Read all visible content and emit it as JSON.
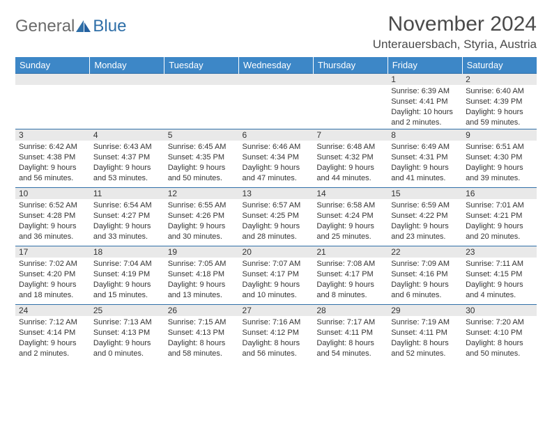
{
  "logo": {
    "part1": "General",
    "part2": "Blue"
  },
  "title": "November 2024",
  "location": "Unterauersbach, Styria, Austria",
  "colors": {
    "header_bg": "#3d87c7",
    "header_text": "#ffffff",
    "rule": "#2f6fa8",
    "daynum_bg": "#e9e9e9",
    "body_text": "#333333",
    "logo_gray": "#6b6b6b",
    "logo_blue": "#2f6fa8"
  },
  "day_headers": [
    "Sunday",
    "Monday",
    "Tuesday",
    "Wednesday",
    "Thursday",
    "Friday",
    "Saturday"
  ],
  "weeks": [
    [
      null,
      null,
      null,
      null,
      null,
      {
        "n": "1",
        "sr": "Sunrise: 6:39 AM",
        "ss": "Sunset: 4:41 PM",
        "dl": "Daylight: 10 hours and 2 minutes."
      },
      {
        "n": "2",
        "sr": "Sunrise: 6:40 AM",
        "ss": "Sunset: 4:39 PM",
        "dl": "Daylight: 9 hours and 59 minutes."
      }
    ],
    [
      {
        "n": "3",
        "sr": "Sunrise: 6:42 AM",
        "ss": "Sunset: 4:38 PM",
        "dl": "Daylight: 9 hours and 56 minutes."
      },
      {
        "n": "4",
        "sr": "Sunrise: 6:43 AM",
        "ss": "Sunset: 4:37 PM",
        "dl": "Daylight: 9 hours and 53 minutes."
      },
      {
        "n": "5",
        "sr": "Sunrise: 6:45 AM",
        "ss": "Sunset: 4:35 PM",
        "dl": "Daylight: 9 hours and 50 minutes."
      },
      {
        "n": "6",
        "sr": "Sunrise: 6:46 AM",
        "ss": "Sunset: 4:34 PM",
        "dl": "Daylight: 9 hours and 47 minutes."
      },
      {
        "n": "7",
        "sr": "Sunrise: 6:48 AM",
        "ss": "Sunset: 4:32 PM",
        "dl": "Daylight: 9 hours and 44 minutes."
      },
      {
        "n": "8",
        "sr": "Sunrise: 6:49 AM",
        "ss": "Sunset: 4:31 PM",
        "dl": "Daylight: 9 hours and 41 minutes."
      },
      {
        "n": "9",
        "sr": "Sunrise: 6:51 AM",
        "ss": "Sunset: 4:30 PM",
        "dl": "Daylight: 9 hours and 39 minutes."
      }
    ],
    [
      {
        "n": "10",
        "sr": "Sunrise: 6:52 AM",
        "ss": "Sunset: 4:28 PM",
        "dl": "Daylight: 9 hours and 36 minutes."
      },
      {
        "n": "11",
        "sr": "Sunrise: 6:54 AM",
        "ss": "Sunset: 4:27 PM",
        "dl": "Daylight: 9 hours and 33 minutes."
      },
      {
        "n": "12",
        "sr": "Sunrise: 6:55 AM",
        "ss": "Sunset: 4:26 PM",
        "dl": "Daylight: 9 hours and 30 minutes."
      },
      {
        "n": "13",
        "sr": "Sunrise: 6:57 AM",
        "ss": "Sunset: 4:25 PM",
        "dl": "Daylight: 9 hours and 28 minutes."
      },
      {
        "n": "14",
        "sr": "Sunrise: 6:58 AM",
        "ss": "Sunset: 4:24 PM",
        "dl": "Daylight: 9 hours and 25 minutes."
      },
      {
        "n": "15",
        "sr": "Sunrise: 6:59 AM",
        "ss": "Sunset: 4:22 PM",
        "dl": "Daylight: 9 hours and 23 minutes."
      },
      {
        "n": "16",
        "sr": "Sunrise: 7:01 AM",
        "ss": "Sunset: 4:21 PM",
        "dl": "Daylight: 9 hours and 20 minutes."
      }
    ],
    [
      {
        "n": "17",
        "sr": "Sunrise: 7:02 AM",
        "ss": "Sunset: 4:20 PM",
        "dl": "Daylight: 9 hours and 18 minutes."
      },
      {
        "n": "18",
        "sr": "Sunrise: 7:04 AM",
        "ss": "Sunset: 4:19 PM",
        "dl": "Daylight: 9 hours and 15 minutes."
      },
      {
        "n": "19",
        "sr": "Sunrise: 7:05 AM",
        "ss": "Sunset: 4:18 PM",
        "dl": "Daylight: 9 hours and 13 minutes."
      },
      {
        "n": "20",
        "sr": "Sunrise: 7:07 AM",
        "ss": "Sunset: 4:17 PM",
        "dl": "Daylight: 9 hours and 10 minutes."
      },
      {
        "n": "21",
        "sr": "Sunrise: 7:08 AM",
        "ss": "Sunset: 4:17 PM",
        "dl": "Daylight: 9 hours and 8 minutes."
      },
      {
        "n": "22",
        "sr": "Sunrise: 7:09 AM",
        "ss": "Sunset: 4:16 PM",
        "dl": "Daylight: 9 hours and 6 minutes."
      },
      {
        "n": "23",
        "sr": "Sunrise: 7:11 AM",
        "ss": "Sunset: 4:15 PM",
        "dl": "Daylight: 9 hours and 4 minutes."
      }
    ],
    [
      {
        "n": "24",
        "sr": "Sunrise: 7:12 AM",
        "ss": "Sunset: 4:14 PM",
        "dl": "Daylight: 9 hours and 2 minutes."
      },
      {
        "n": "25",
        "sr": "Sunrise: 7:13 AM",
        "ss": "Sunset: 4:13 PM",
        "dl": "Daylight: 9 hours and 0 minutes."
      },
      {
        "n": "26",
        "sr": "Sunrise: 7:15 AM",
        "ss": "Sunset: 4:13 PM",
        "dl": "Daylight: 8 hours and 58 minutes."
      },
      {
        "n": "27",
        "sr": "Sunrise: 7:16 AM",
        "ss": "Sunset: 4:12 PM",
        "dl": "Daylight: 8 hours and 56 minutes."
      },
      {
        "n": "28",
        "sr": "Sunrise: 7:17 AM",
        "ss": "Sunset: 4:11 PM",
        "dl": "Daylight: 8 hours and 54 minutes."
      },
      {
        "n": "29",
        "sr": "Sunrise: 7:19 AM",
        "ss": "Sunset: 4:11 PM",
        "dl": "Daylight: 8 hours and 52 minutes."
      },
      {
        "n": "30",
        "sr": "Sunrise: 7:20 AM",
        "ss": "Sunset: 4:10 PM",
        "dl": "Daylight: 8 hours and 50 minutes."
      }
    ]
  ]
}
